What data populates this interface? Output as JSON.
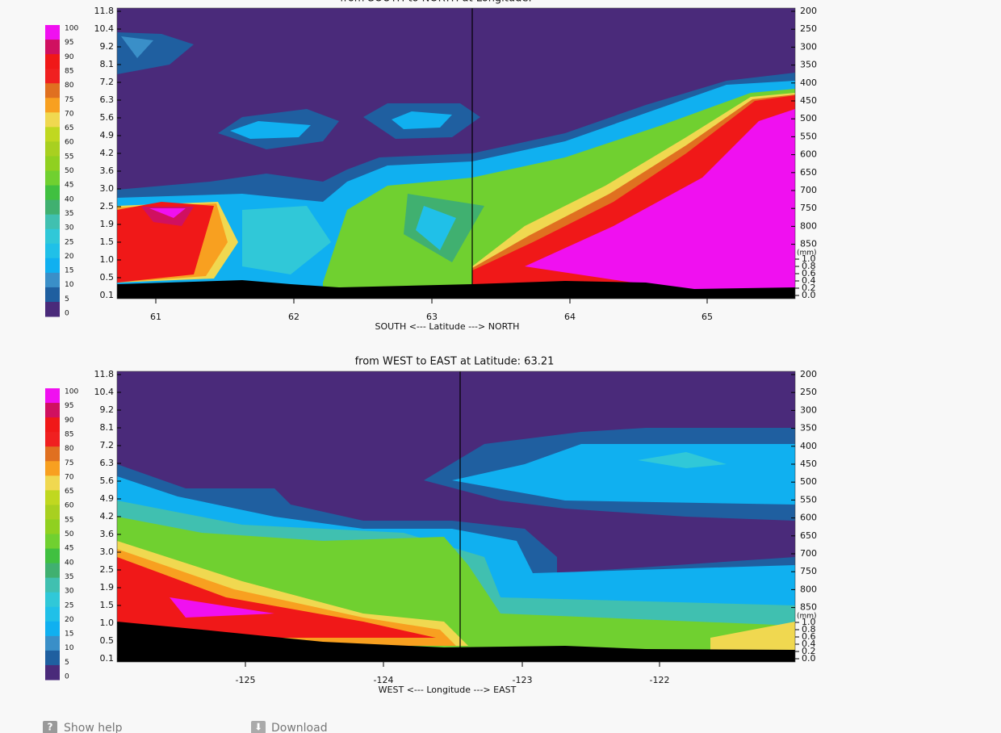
{
  "panels": [
    {
      "title": "from SOUTH to NORTH at Longitude:",
      "x_ticks": [
        "61",
        "62",
        "63",
        "64",
        "65"
      ],
      "x_label": "SOUTH <---   Latitude   ---> NORTH",
      "left_ticks": [
        "11.8",
        "10.4",
        "9.2",
        "8.1",
        "7.2",
        "6.3",
        "5.6",
        "4.9",
        "4.2",
        "3.6",
        "3.0",
        "2.5",
        "1.9",
        "1.5",
        "1.0",
        "0.5",
        "0.1"
      ],
      "right_ticks": [
        "200",
        "250",
        "300",
        "350",
        "400",
        "450",
        "500",
        "550",
        "600",
        "650",
        "700",
        "750",
        "800",
        "850"
      ],
      "mm_unit": "(mm)",
      "mm_ticks": [
        "1.0",
        "0.8",
        "0.6",
        "0.4",
        "0.2",
        "0.0"
      ]
    },
    {
      "title": "from WEST to EAST at Latitude:  63.21",
      "x_ticks": [
        "-125",
        "-124",
        "-123",
        "-122"
      ],
      "x_label": "WEST <---   Longitude   ---> EAST",
      "left_ticks": [
        "11.8",
        "10.4",
        "9.2",
        "8.1",
        "7.2",
        "6.3",
        "5.6",
        "4.9",
        "4.2",
        "3.6",
        "3.0",
        "2.5",
        "1.9",
        "1.5",
        "1.0",
        "0.5",
        "0.1"
      ],
      "right_ticks": [
        "200",
        "250",
        "300",
        "350",
        "400",
        "450",
        "500",
        "550",
        "600",
        "650",
        "700",
        "750",
        "800",
        "850"
      ],
      "mm_unit": "(mm)",
      "mm_ticks": [
        "1.0",
        "0.8",
        "0.6",
        "0.4",
        "0.2",
        "0.0"
      ]
    }
  ],
  "colorbar": {
    "levels": [
      100,
      95,
      90,
      85,
      80,
      75,
      70,
      65,
      60,
      55,
      50,
      45,
      40,
      35,
      30,
      25,
      20,
      15,
      10,
      5,
      0
    ],
    "colors": [
      "#f010f0",
      "#d01060",
      "#f01818",
      "#f02020",
      "#e07020",
      "#f8a020",
      "#f0d850",
      "#c0d820",
      "#a8d020",
      "#90d020",
      "#70d030",
      "#40c040",
      "#40b070",
      "#40c0b0",
      "#30c8d8",
      "#20c0e8",
      "#10b0f0",
      "#3a8fc8",
      "#1f5fa0",
      "#4a2a7a"
    ]
  },
  "buttons": [
    {
      "label": "Show help"
    },
    {
      "label": "Download"
    }
  ]
}
